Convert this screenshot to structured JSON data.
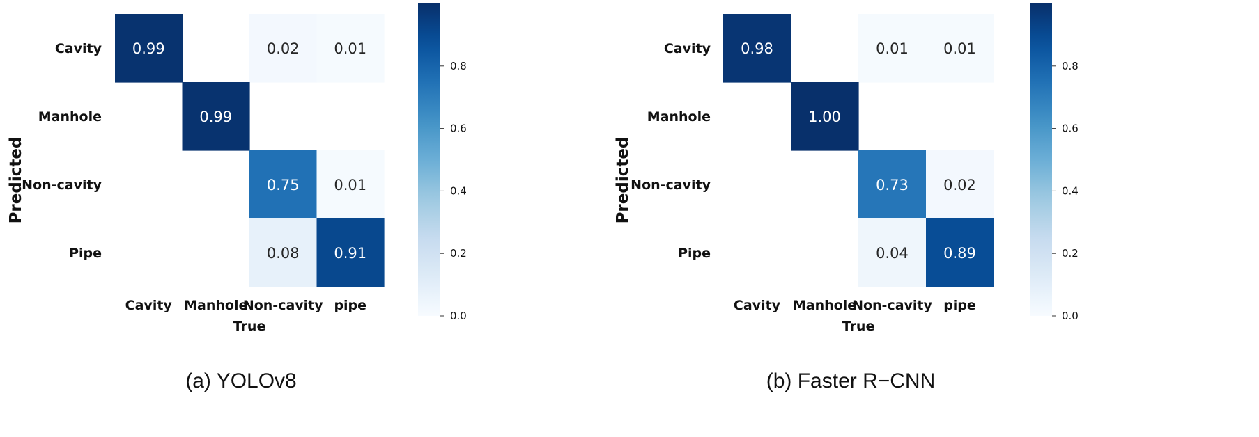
{
  "chart_data": [
    {
      "type": "heatmap",
      "caption": "(a) YOLOv8",
      "xlabel": "True",
      "ylabel": "Predicted",
      "x_categories": [
        "Cavity",
        "Manhole",
        "Non-cavity",
        "pipe"
      ],
      "y_categories": [
        "Cavity",
        "Manhole",
        "Non-cavity",
        "Pipe"
      ],
      "values": [
        [
          0.99,
          null,
          0.02,
          0.01
        ],
        [
          null,
          0.99,
          null,
          null
        ],
        [
          null,
          null,
          0.75,
          0.01
        ],
        [
          null,
          null,
          0.08,
          0.91
        ]
      ],
      "colorbar": {
        "range": [
          0,
          1
        ],
        "ticks": [
          "0.0",
          "0.2",
          "0.4",
          "0.6",
          "0.8"
        ],
        "colormap": "Blues"
      }
    },
    {
      "type": "heatmap",
      "caption": "(b) Faster R−CNN",
      "xlabel": "True",
      "ylabel": "Predicted",
      "x_categories": [
        "Cavity",
        "Manhole",
        "Non-cavity",
        "pipe"
      ],
      "y_categories": [
        "Cavity",
        "Manhole",
        "Non-cavity",
        "Pipe"
      ],
      "values": [
        [
          0.98,
          null,
          0.01,
          0.01
        ],
        [
          null,
          1.0,
          null,
          null
        ],
        [
          null,
          null,
          0.73,
          0.02
        ],
        [
          null,
          null,
          0.04,
          0.89
        ]
      ],
      "colorbar": {
        "range": [
          0,
          1
        ],
        "ticks": [
          "0.0",
          "0.2",
          "0.4",
          "0.6",
          "0.8"
        ],
        "colormap": "Blues"
      }
    }
  ]
}
